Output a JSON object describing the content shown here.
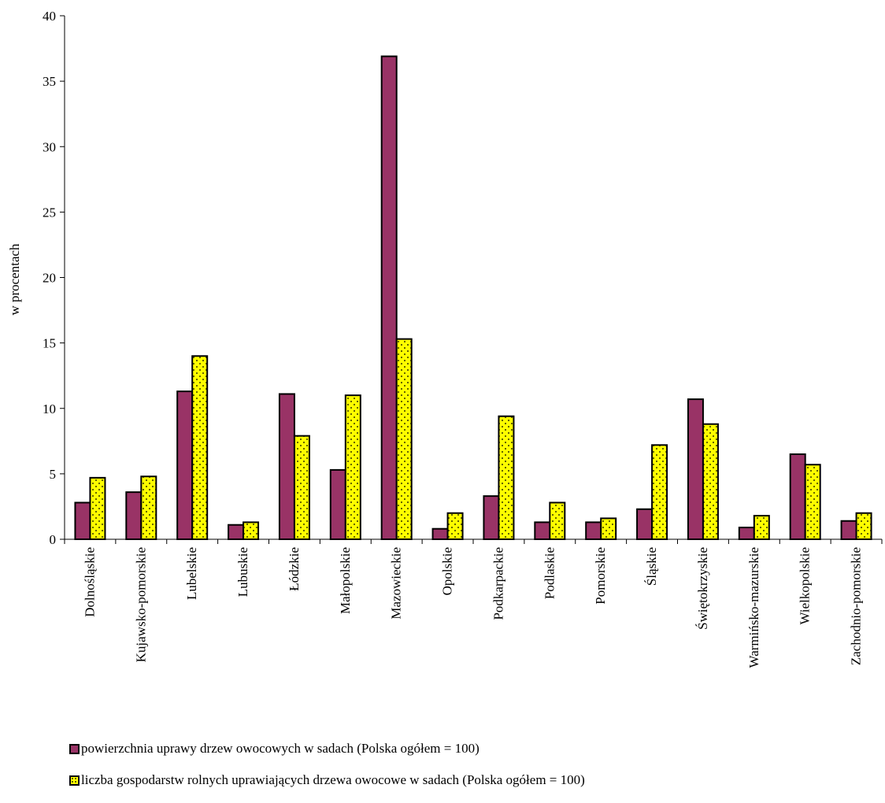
{
  "chart_data": {
    "type": "bar",
    "title": "",
    "xlabel": "",
    "ylabel": "w procentach",
    "ylim": [
      0,
      40
    ],
    "yticks": [
      0,
      5,
      10,
      15,
      20,
      25,
      30,
      35,
      40
    ],
    "grid": false,
    "legend_position": "bottom",
    "categories": [
      "Dolnośląskie",
      "Kujawsko-pomorskie",
      "Lubelskie",
      "Lubuskie",
      "Łódzkie",
      "Małopolskie",
      "Mazowieckie",
      "Opolskie",
      "Podkarpackie",
      "Podlaskie",
      "Pomorskie",
      "Śląskie",
      "Świętokrzyskie",
      "Warmińsko-mazurskie",
      "Wielkopolskie",
      "Zachodnio-pomorskie"
    ],
    "series": [
      {
        "name": "powierzchnia uprawy drzew owocowych w sadach (Polska ogółem = 100)",
        "color": "#993366",
        "values": [
          2.8,
          3.6,
          11.3,
          1.1,
          11.1,
          5.3,
          36.9,
          0.8,
          3.3,
          1.3,
          1.3,
          2.3,
          10.7,
          0.9,
          6.5,
          1.4
        ]
      },
      {
        "name": "liczba gospodarstw rolnych uprawiających drzewa owocowe w sadach (Polska ogółem = 100)",
        "color": "#ffff00",
        "pattern": "dotted",
        "values": [
          4.7,
          4.8,
          14.0,
          1.3,
          7.9,
          11.0,
          15.3,
          2.0,
          9.4,
          2.8,
          1.6,
          7.2,
          8.8,
          1.8,
          5.7,
          2.0
        ]
      }
    ]
  }
}
